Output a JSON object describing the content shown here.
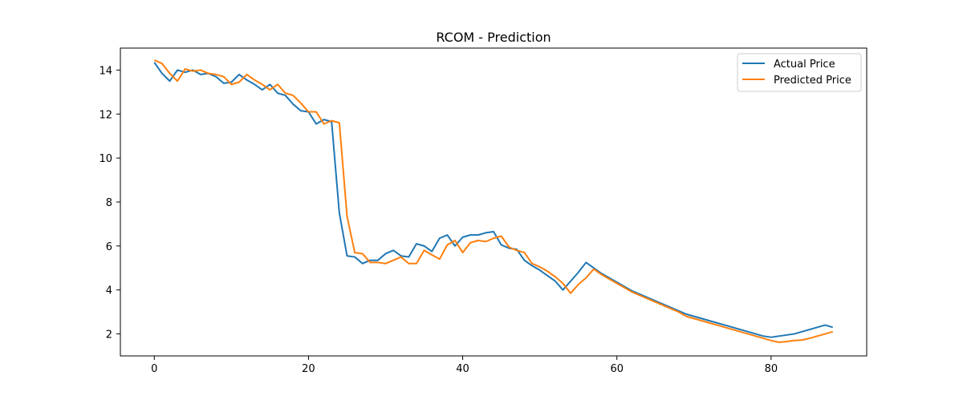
{
  "chart_data": {
    "type": "line",
    "title": "RCOM - Prediction",
    "xlabel": "",
    "ylabel": "",
    "xlim": [
      -4.4,
      92.4
    ],
    "ylim": [
      1.0,
      15.0
    ],
    "x_ticks": [
      0,
      20,
      40,
      60,
      80
    ],
    "y_ticks": [
      2,
      4,
      6,
      8,
      10,
      12,
      14
    ],
    "grid": false,
    "legend_position": "top-right",
    "series": [
      {
        "name": "Actual Price",
        "color": "#1f77b4",
        "x": [
          0,
          1,
          2,
          3,
          4,
          5,
          6,
          7,
          8,
          9,
          10,
          11,
          12,
          13,
          14,
          15,
          16,
          17,
          18,
          19,
          20,
          21,
          22,
          23,
          24,
          25,
          26,
          27,
          28,
          29,
          30,
          31,
          32,
          33,
          34,
          35,
          36,
          37,
          38,
          39,
          40,
          41,
          42,
          43,
          44,
          45,
          46,
          47,
          48,
          49,
          50,
          51,
          52,
          53,
          54,
          55,
          56,
          57,
          58,
          59,
          60,
          61,
          62,
          63,
          64,
          65,
          66,
          67,
          68,
          69,
          70,
          71,
          72,
          73,
          74,
          75,
          76,
          77,
          78,
          79,
          80,
          81,
          82,
          83,
          84,
          85,
          86,
          87,
          88
        ],
        "values": [
          14.35,
          13.85,
          13.5,
          14.0,
          13.9,
          14.0,
          13.8,
          13.85,
          13.7,
          13.4,
          13.45,
          13.8,
          13.55,
          13.35,
          13.1,
          13.35,
          12.95,
          12.85,
          12.45,
          12.15,
          12.1,
          11.55,
          11.75,
          11.65,
          7.5,
          5.55,
          5.5,
          5.2,
          5.35,
          5.35,
          5.65,
          5.8,
          5.55,
          5.5,
          6.1,
          6.0,
          5.75,
          6.35,
          6.5,
          6.0,
          6.4,
          6.5,
          6.5,
          6.6,
          6.65,
          6.05,
          5.9,
          5.85,
          5.35,
          5.1,
          4.9,
          4.65,
          4.4,
          4.0,
          4.4,
          4.8,
          5.25,
          5.0,
          4.75,
          4.55,
          4.35,
          4.15,
          3.95,
          3.8,
          3.65,
          3.5,
          3.35,
          3.2,
          3.05,
          2.9,
          2.8,
          2.7,
          2.6,
          2.5,
          2.4,
          2.3,
          2.2,
          2.1,
          2.0,
          1.9,
          1.85,
          1.9,
          1.95,
          2.0,
          2.1,
          2.2,
          2.3,
          2.4,
          2.3
        ]
      },
      {
        "name": "Predicted Price",
        "color": "#ff7f0e",
        "x": [
          0,
          1,
          2,
          3,
          4,
          5,
          6,
          7,
          8,
          9,
          10,
          11,
          12,
          13,
          14,
          15,
          16,
          17,
          18,
          19,
          20,
          21,
          22,
          23,
          24,
          25,
          26,
          27,
          28,
          29,
          30,
          31,
          32,
          33,
          34,
          35,
          36,
          37,
          38,
          39,
          40,
          41,
          42,
          43,
          44,
          45,
          46,
          47,
          48,
          49,
          50,
          51,
          52,
          53,
          54,
          55,
          56,
          57,
          58,
          59,
          60,
          61,
          62,
          63,
          64,
          65,
          66,
          67,
          68,
          69,
          70,
          71,
          72,
          73,
          74,
          75,
          76,
          77,
          78,
          79,
          80,
          81,
          82,
          83,
          84,
          85,
          86,
          87,
          88
        ],
        "values": [
          14.45,
          14.3,
          13.85,
          13.5,
          14.05,
          13.95,
          14.0,
          13.85,
          13.8,
          13.7,
          13.35,
          13.45,
          13.8,
          13.55,
          13.35,
          13.1,
          13.35,
          12.95,
          12.85,
          12.5,
          12.1,
          12.1,
          11.55,
          11.7,
          11.6,
          7.35,
          5.7,
          5.65,
          5.25,
          5.25,
          5.2,
          5.35,
          5.5,
          5.2,
          5.2,
          5.8,
          5.6,
          5.4,
          6.05,
          6.25,
          5.7,
          6.15,
          6.25,
          6.2,
          6.35,
          6.45,
          5.95,
          5.8,
          5.7,
          5.2,
          5.05,
          4.85,
          4.6,
          4.3,
          3.85,
          4.25,
          4.55,
          4.95,
          4.7,
          4.5,
          4.3,
          4.1,
          3.9,
          3.75,
          3.6,
          3.45,
          3.3,
          3.15,
          3.0,
          2.8,
          2.7,
          2.6,
          2.5,
          2.4,
          2.3,
          2.2,
          2.1,
          2.0,
          1.9,
          1.8,
          1.7,
          1.62,
          1.65,
          1.7,
          1.72,
          1.8,
          1.9,
          2.0,
          2.1
        ]
      }
    ]
  }
}
